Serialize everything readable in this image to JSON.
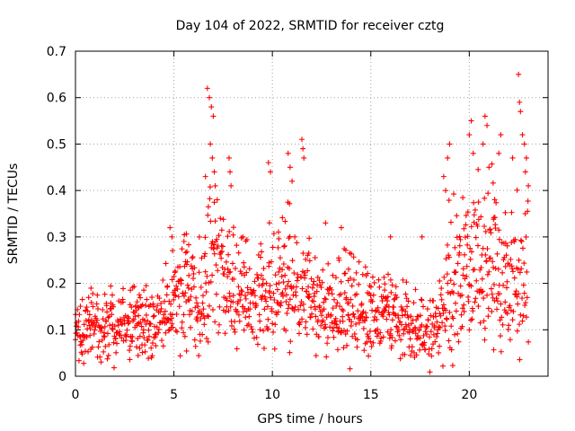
{
  "chart_data": {
    "type": "scatter",
    "title": "Day 104 of 2022, SRMTID for receiver cztg",
    "xlabel": "GPS time / hours",
    "ylabel": "SRMTID / TECUs",
    "xlim": [
      0,
      24
    ],
    "ylim": [
      0,
      0.7
    ],
    "xticks": [
      0,
      5,
      10,
      15,
      20
    ],
    "xtick_labels": [
      "0",
      "5",
      "10",
      "15",
      "20"
    ],
    "yticks": [
      0,
      0.1,
      0.2,
      0.3,
      0.4,
      0.5,
      0.6,
      0.7
    ],
    "ytick_labels": [
      "0",
      "0.1",
      "0.2",
      "0.3",
      "0.4",
      "0.5",
      "0.6",
      "0.7"
    ],
    "grid": true,
    "marker": "+",
    "marker_color": "#ff0000",
    "series": [
      {
        "name": "SRMTID",
        "envelope_x": [
          0,
          0.5,
          1,
          1.5,
          2,
          2.5,
          3,
          3.5,
          4,
          4.5,
          5,
          5.5,
          6,
          6.5,
          7,
          7.5,
          8,
          8.5,
          9,
          9.5,
          10,
          10.5,
          11,
          11.5,
          12,
          12.5,
          13,
          13.5,
          14,
          14.5,
          15,
          15.5,
          16,
          16.5,
          17,
          17.5,
          18,
          18.5,
          19,
          19.5,
          20,
          20.5,
          21,
          21.5,
          22,
          22.5,
          23
        ],
        "envelope_median": [
          0.09,
          0.09,
          0.1,
          0.1,
          0.1,
          0.11,
          0.11,
          0.1,
          0.1,
          0.12,
          0.16,
          0.17,
          0.17,
          0.17,
          0.25,
          0.2,
          0.17,
          0.17,
          0.16,
          0.15,
          0.17,
          0.18,
          0.2,
          0.17,
          0.15,
          0.14,
          0.13,
          0.14,
          0.13,
          0.13,
          0.12,
          0.12,
          0.12,
          0.11,
          0.1,
          0.1,
          0.09,
          0.11,
          0.16,
          0.2,
          0.22,
          0.24,
          0.24,
          0.2,
          0.18,
          0.2,
          0.22
        ],
        "envelope_spread": [
          0.04,
          0.05,
          0.05,
          0.05,
          0.05,
          0.05,
          0.05,
          0.05,
          0.05,
          0.06,
          0.07,
          0.07,
          0.07,
          0.07,
          0.15,
          0.08,
          0.08,
          0.07,
          0.07,
          0.07,
          0.1,
          0.09,
          0.11,
          0.08,
          0.07,
          0.07,
          0.06,
          0.07,
          0.07,
          0.07,
          0.06,
          0.06,
          0.06,
          0.05,
          0.05,
          0.05,
          0.05,
          0.06,
          0.12,
          0.1,
          0.11,
          0.11,
          0.12,
          0.1,
          0.09,
          0.12,
          0.12
        ],
        "peaks": [
          {
            "x": 6.7,
            "y": 0.62
          },
          {
            "x": 6.8,
            "y": 0.6
          },
          {
            "x": 6.9,
            "y": 0.58
          },
          {
            "x": 7.0,
            "y": 0.56
          },
          {
            "x": 6.85,
            "y": 0.5
          },
          {
            "x": 6.95,
            "y": 0.47
          },
          {
            "x": 7.05,
            "y": 0.44
          },
          {
            "x": 7.1,
            "y": 0.41
          },
          {
            "x": 7.2,
            "y": 0.38
          },
          {
            "x": 6.6,
            "y": 0.43
          },
          {
            "x": 7.8,
            "y": 0.47
          },
          {
            "x": 7.85,
            "y": 0.44
          },
          {
            "x": 7.9,
            "y": 0.41
          },
          {
            "x": 9.8,
            "y": 0.46
          },
          {
            "x": 9.9,
            "y": 0.44
          },
          {
            "x": 10.8,
            "y": 0.48
          },
          {
            "x": 10.9,
            "y": 0.45
          },
          {
            "x": 11.0,
            "y": 0.42
          },
          {
            "x": 11.5,
            "y": 0.51
          },
          {
            "x": 11.55,
            "y": 0.49
          },
          {
            "x": 11.6,
            "y": 0.47
          },
          {
            "x": 19.0,
            "y": 0.5
          },
          {
            "x": 18.9,
            "y": 0.47
          },
          {
            "x": 18.7,
            "y": 0.43
          },
          {
            "x": 18.8,
            "y": 0.4
          },
          {
            "x": 20.1,
            "y": 0.55
          },
          {
            "x": 20.0,
            "y": 0.52
          },
          {
            "x": 20.2,
            "y": 0.48
          },
          {
            "x": 20.8,
            "y": 0.56
          },
          {
            "x": 20.9,
            "y": 0.54
          },
          {
            "x": 20.7,
            "y": 0.5
          },
          {
            "x": 21.0,
            "y": 0.45
          },
          {
            "x": 21.6,
            "y": 0.52
          },
          {
            "x": 21.5,
            "y": 0.48
          },
          {
            "x": 22.5,
            "y": 0.65
          },
          {
            "x": 22.55,
            "y": 0.59
          },
          {
            "x": 22.6,
            "y": 0.57
          },
          {
            "x": 22.7,
            "y": 0.52
          },
          {
            "x": 22.8,
            "y": 0.5
          },
          {
            "x": 22.9,
            "y": 0.47
          },
          {
            "x": 22.85,
            "y": 0.44
          },
          {
            "x": 23.0,
            "y": 0.41
          },
          {
            "x": 22.2,
            "y": 0.47
          },
          {
            "x": 4.8,
            "y": 0.32
          },
          {
            "x": 4.9,
            "y": 0.3
          },
          {
            "x": 8.5,
            "y": 0.3
          },
          {
            "x": 12.7,
            "y": 0.33
          },
          {
            "x": 13.5,
            "y": 0.32
          },
          {
            "x": 16.0,
            "y": 0.3
          },
          {
            "x": 17.6,
            "y": 0.3
          }
        ]
      }
    ]
  }
}
